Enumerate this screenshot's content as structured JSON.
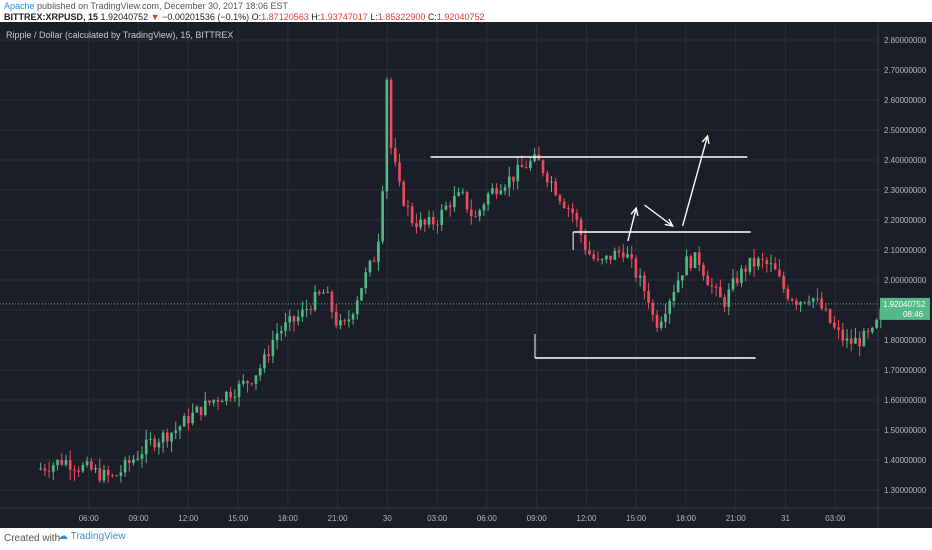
{
  "header": {
    "author": "Apache",
    "published_text": "published on TradingView.com, December 30, 2017 18:06 EST",
    "symbol_line": "BITTREX:XRPUSD, 15",
    "last_price": "1.92040752",
    "change": "−0.00201536 (−0.1%)",
    "ohlc_o_label": "O:",
    "ohlc_o": "1.87120563",
    "ohlc_h_label": "H:",
    "ohlc_h": "1.93747017",
    "ohlc_l_label": "L:",
    "ohlc_l": "1.85322900",
    "ohlc_c_label": "C:",
    "ohlc_c": "1.92040752"
  },
  "legend": "Ripple / Dollar (calculated by TradingView), 15, BITTREX",
  "footer": {
    "created_with": "Created with",
    "brand": "TradingView"
  },
  "colors": {
    "background": "#1b1e28",
    "up": "#53b987",
    "down": "#eb4d5c",
    "grid": "#2a2e39",
    "lines": "#ffffff"
  },
  "chart_data": {
    "type": "candlestick",
    "title": "Ripple / Dollar (calculated by TradingView), 15, BITTREX",
    "ylim": [
      1.24,
      2.86
    ],
    "y_ticks": [
      "2.80000000",
      "2.70000000",
      "2.60000000",
      "2.50000000",
      "2.40000000",
      "2.30000000",
      "2.20000000",
      "2.10000000",
      "2.00000000",
      "1.90000000",
      "1.80000000",
      "1.70000000",
      "1.60000000",
      "1.50000000",
      "1.40000000",
      "1.30000000"
    ],
    "x_ticks": [
      {
        "label": "06:00",
        "h": 3
      },
      {
        "label": "09:00",
        "h": 6
      },
      {
        "label": "12:00",
        "h": 9
      },
      {
        "label": "15:00",
        "h": 12
      },
      {
        "label": "18:00",
        "h": 15
      },
      {
        "label": "21:00",
        "h": 18
      },
      {
        "label": "30",
        "h": 21
      },
      {
        "label": "03:00",
        "h": 24
      },
      {
        "label": "06:00",
        "h": 27
      },
      {
        "label": "09:00",
        "h": 30
      },
      {
        "label": "12:00",
        "h": 33
      },
      {
        "label": "15:00",
        "h": 36
      },
      {
        "label": "18:00",
        "h": 39
      },
      {
        "label": "21:00",
        "h": 42
      },
      {
        "label": "31",
        "h": 45
      },
      {
        "label": "03:00",
        "h": 48
      }
    ],
    "x_range_hours": [
      0,
      51
    ],
    "first_bar_hour": 0.1,
    "last_price": {
      "value": 1.92040752,
      "label": "1.92040752",
      "countdown": "08:46"
    },
    "waypoints": [
      [
        0,
        1.37
      ],
      [
        2,
        1.4
      ],
      [
        3,
        1.38
      ],
      [
        4,
        1.37
      ],
      [
        5,
        1.35
      ],
      [
        6,
        1.34
      ],
      [
        7,
        1.38
      ],
      [
        9,
        1.46
      ],
      [
        11,
        1.5
      ],
      [
        12,
        1.54
      ],
      [
        13,
        1.57
      ],
      [
        14,
        1.6
      ],
      [
        15,
        1.62
      ],
      [
        16,
        1.64
      ],
      [
        17,
        1.67
      ],
      [
        18,
        1.72
      ],
      [
        19,
        1.82
      ],
      [
        20,
        1.85
      ],
      [
        21,
        1.88
      ],
      [
        22,
        1.93
      ],
      [
        23,
        1.96
      ],
      [
        24,
        1.85
      ],
      [
        24.5,
        1.84
      ],
      [
        25,
        1.88
      ],
      [
        26,
        1.99
      ],
      [
        27,
        2.08
      ],
      [
        27.5,
        2.2
      ],
      [
        27.75,
        2.45
      ],
      [
        28,
        2.72
      ],
      [
        28.25,
        2.45
      ],
      [
        29,
        2.3
      ],
      [
        30,
        2.2
      ],
      [
        31,
        2.18
      ],
      [
        32,
        2.2
      ],
      [
        33,
        2.26
      ],
      [
        34,
        2.28
      ],
      [
        35,
        2.2
      ],
      [
        36,
        2.28
      ],
      [
        37,
        2.32
      ],
      [
        38,
        2.34
      ],
      [
        39,
        2.38
      ],
      [
        40,
        2.4
      ],
      [
        41,
        2.34
      ],
      [
        42,
        2.27
      ],
      [
        43,
        2.22
      ],
      [
        44,
        2.1
      ],
      [
        45,
        2.05
      ],
      [
        46,
        2.08
      ],
      [
        47,
        2.1
      ],
      [
        48,
        2.02
      ],
      [
        49,
        1.94
      ],
      [
        49.5,
        1.85
      ],
      [
        50,
        1.88
      ],
      [
        51,
        1.97
      ],
      [
        52,
        2.06
      ],
      [
        53,
        2.07
      ],
      [
        54,
        1.98
      ],
      [
        55,
        1.92
      ],
      [
        56,
        2.0
      ],
      [
        57,
        2.05
      ],
      [
        58,
        2.06
      ],
      [
        59,
        2.04
      ],
      [
        60,
        1.96
      ],
      [
        61,
        1.93
      ],
      [
        62,
        1.95
      ],
      [
        63,
        1.9
      ],
      [
        64,
        1.83
      ],
      [
        65,
        1.79
      ],
      [
        66,
        1.8
      ],
      [
        67,
        1.82
      ],
      [
        68,
        1.92
      ]
    ],
    "horizontal_levels": [
      {
        "y": 2.41,
        "x_from_h": 23.6,
        "x_to_h": 42.7
      },
      {
        "y": 2.16,
        "x_from_h": 32.2,
        "x_to_h": 42.9
      },
      {
        "y": 1.74,
        "x_from_h": 29.9,
        "x_to_h": 43.2
      }
    ],
    "arrows": [
      {
        "from": [
          35.5,
          2.13
        ],
        "to": [
          36.0,
          2.24
        ]
      },
      {
        "from": [
          36.5,
          2.25
        ],
        "to": [
          38.2,
          2.18
        ]
      },
      {
        "from": [
          38.8,
          2.18
        ],
        "to": [
          40.3,
          2.48
        ]
      }
    ]
  }
}
